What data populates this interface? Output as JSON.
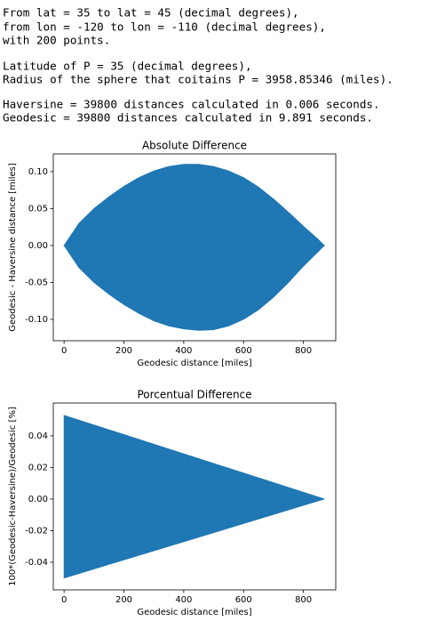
{
  "output_text": [
    "From lat = 35 to lat = 45 (decimal degrees),",
    "from lon = -120 to lon = -110 (decimal degrees),",
    "with 200 points.",
    "Latitude of P = 35 (decimal degrees),",
    "Radius of the sphere that coitains P = 3958.85346 (miles).",
    "Haversine = 39800 distances calculated in 0.006 seconds.",
    "Geodesic = 39800 distances calculated in 9.891 seconds."
  ],
  "chart_data": [
    {
      "type": "area",
      "title": "Absolute Difference",
      "xlabel": "Geodesic distance [miles]",
      "ylabel": "Geodesic - Haversine distance [miles]",
      "color": "#1f77b4",
      "x": [
        0,
        50,
        100,
        150,
        200,
        250,
        300,
        350,
        400,
        450,
        500,
        550,
        600,
        650,
        700,
        750,
        800,
        850,
        870
      ],
      "upper": [
        0,
        0.03,
        0.05,
        0.066,
        0.08,
        0.092,
        0.101,
        0.107,
        0.11,
        0.11,
        0.107,
        0.101,
        0.092,
        0.079,
        0.063,
        0.045,
        0.026,
        0.008,
        0
      ],
      "lower": [
        0,
        -0.03,
        -0.05,
        -0.066,
        -0.08,
        -0.092,
        -0.102,
        -0.109,
        -0.113,
        -0.115,
        -0.114,
        -0.109,
        -0.1,
        -0.087,
        -0.07,
        -0.05,
        -0.028,
        -0.008,
        0
      ],
      "xlim": [
        -36,
        908
      ],
      "xticks": [
        0,
        200,
        400,
        600,
        800
      ],
      "ylim": [
        -0.129,
        0.124
      ],
      "yticks": [
        {
          "value": 0.1,
          "label": "0.10"
        },
        0.05,
        {
          "value": 0,
          "label": "0.00"
        },
        -0.05,
        {
          "value": -0.1,
          "label": "-0.10"
        }
      ]
    },
    {
      "type": "area",
      "title": "Porcentual Difference",
      "xlabel": "Geodesic distance [miles]",
      "ylabel": "100*(Geodesic-Haversine)/Geodesic [%]",
      "color": "#1f77b4",
      "x": [
        0,
        870
      ],
      "upper": [
        0.053,
        0
      ],
      "lower": [
        -0.05,
        0
      ],
      "xlim": [
        -36,
        908
      ],
      "xticks": [
        0,
        200,
        400,
        600,
        800
      ],
      "ylim": [
        -0.0575,
        0.0608
      ],
      "yticks": [
        0.04,
        0.02,
        {
          "value": 0,
          "label": "0.00"
        },
        -0.02,
        -0.04
      ]
    }
  ]
}
